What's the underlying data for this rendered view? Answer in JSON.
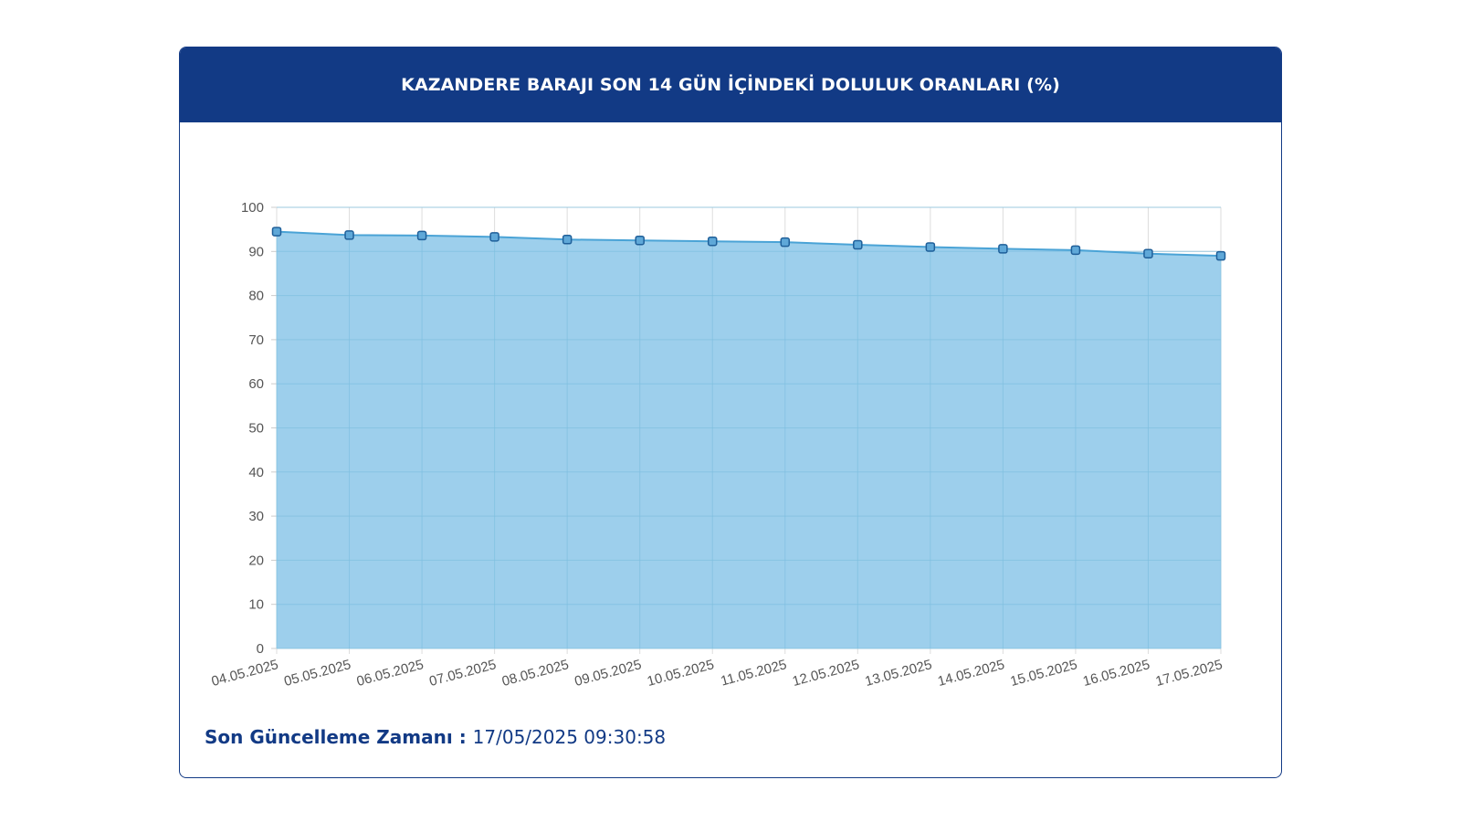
{
  "header": {
    "title": "KAZANDERE BARAJI SON 14 GÜN İÇİNDEKİ DOLULUK ORANLARI (%)"
  },
  "footer": {
    "label": "Son Güncelleme Zamanı",
    "separator": " : ",
    "value": "17/05/2025 09:30:58"
  },
  "colors": {
    "header_bg": "#123a85",
    "area_fill": "#9dcfec",
    "line": "#4aa3d6",
    "grid": "#dddddd"
  },
  "chart_data": {
    "type": "area",
    "title": "KAZANDERE BARAJI SON 14 GÜN İÇİNDEKİ DOLULUK ORANLARI (%)",
    "categories": [
      "04.05.2025",
      "05.05.2025",
      "06.05.2025",
      "07.05.2025",
      "08.05.2025",
      "09.05.2025",
      "10.05.2025",
      "11.05.2025",
      "12.05.2025",
      "13.05.2025",
      "14.05.2025",
      "15.05.2025",
      "16.05.2025",
      "17.05.2025"
    ],
    "values": [
      94.5,
      93.7,
      93.6,
      93.3,
      92.7,
      92.5,
      92.3,
      92.1,
      91.5,
      91.0,
      90.6,
      90.3,
      89.5,
      89.0
    ],
    "ylim": [
      0,
      100
    ],
    "yticks": [
      0,
      10,
      20,
      30,
      40,
      50,
      60,
      70,
      80,
      90,
      100
    ],
    "grid": true,
    "legend": "none",
    "xlabel": "",
    "ylabel": ""
  }
}
